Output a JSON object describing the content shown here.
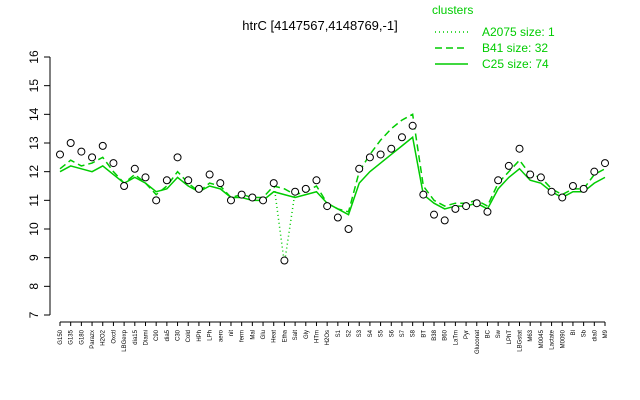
{
  "chart_data": {
    "type": "line",
    "title": "htrC [4147567,4148769,-1]",
    "legend_title": "clusters",
    "legend": "top-right",
    "categories": [
      "G150",
      "G135",
      "G180",
      "Parazx",
      "H2O2",
      "Oxctl",
      "LBGexp",
      "dia15",
      "Diami",
      "C90",
      "dia5",
      "C30",
      "Cold",
      "HPh",
      "LPh",
      "aero",
      "nit",
      "ferm",
      "Mal",
      "Glu",
      "Heat",
      "Etha",
      "Salt",
      "Gly",
      "HTm",
      "H2Os",
      "S1",
      "S2",
      "S3",
      "S4",
      "S5",
      "S6",
      "S7",
      "S8",
      "BT",
      "B38",
      "B60",
      "LaTm",
      "Pyr",
      "Gluconat",
      "BC",
      "Sw",
      "LPhT",
      "LBGstat",
      "M63",
      "M0045",
      "Lactate",
      "M0090",
      "Bl",
      "Sb",
      "dia0",
      "M9"
    ],
    "points": [
      12.6,
      13.0,
      12.7,
      12.5,
      12.9,
      12.3,
      11.5,
      12.1,
      11.8,
      11.0,
      11.7,
      12.5,
      11.7,
      11.4,
      11.9,
      11.6,
      11.0,
      11.2,
      11.1,
      11.0,
      11.6,
      8.9,
      11.3,
      11.4,
      11.7,
      10.8,
      10.4,
      10.0,
      12.1,
      12.5,
      12.6,
      12.8,
      13.2,
      13.6,
      11.2,
      10.5,
      10.3,
      10.7,
      10.8,
      10.9,
      10.6,
      11.7,
      12.2,
      12.8,
      11.9,
      11.8,
      11.3,
      11.1,
      11.5,
      11.4,
      12.0,
      12.3
    ],
    "series": [
      {
        "name": "A2075 size: 1",
        "color": "#00cc00",
        "dash": "1,3",
        "values": [
          null,
          null,
          null,
          null,
          null,
          null,
          null,
          null,
          null,
          null,
          null,
          null,
          null,
          null,
          null,
          null,
          null,
          null,
          null,
          null,
          11.6,
          8.8,
          11.3,
          null,
          null,
          null,
          null,
          null,
          null,
          null,
          null,
          null,
          null,
          null,
          null,
          null,
          null,
          null,
          null,
          null,
          null,
          null,
          null,
          null,
          null,
          null,
          null,
          null,
          null,
          null,
          null,
          null
        ]
      },
      {
        "name": "B41 size: 32",
        "color": "#00cc00",
        "dash": "7,4",
        "values": [
          12.1,
          12.4,
          12.2,
          12.3,
          12.5,
          12.0,
          11.6,
          11.9,
          11.6,
          11.2,
          11.5,
          12.0,
          11.6,
          11.3,
          11.6,
          11.5,
          11.1,
          11.2,
          11.1,
          11.1,
          11.5,
          11.4,
          11.2,
          11.3,
          11.5,
          10.9,
          10.7,
          10.6,
          12.0,
          12.6,
          13.1,
          13.5,
          13.8,
          14.0,
          11.5,
          11.0,
          10.8,
          10.9,
          10.9,
          11.0,
          10.8,
          11.6,
          12.0,
          12.4,
          11.9,
          11.8,
          11.4,
          11.2,
          11.4,
          11.4,
          11.9,
          12.1
        ]
      },
      {
        "name": "C25 size: 74",
        "color": "#00cc00",
        "dash": "",
        "values": [
          12.0,
          12.2,
          12.1,
          12.0,
          12.2,
          11.9,
          11.6,
          11.8,
          11.6,
          11.3,
          11.4,
          11.8,
          11.5,
          11.3,
          11.5,
          11.4,
          11.1,
          11.1,
          11.0,
          11.0,
          11.3,
          11.2,
          11.1,
          11.2,
          11.3,
          10.9,
          10.7,
          10.5,
          11.6,
          12.0,
          12.3,
          12.6,
          12.9,
          13.2,
          11.2,
          10.9,
          10.7,
          10.8,
          10.8,
          10.9,
          10.7,
          11.4,
          11.8,
          12.1,
          11.7,
          11.6,
          11.3,
          11.1,
          11.3,
          11.3,
          11.6,
          11.8
        ]
      }
    ],
    "ylim": [
      7,
      16
    ],
    "yticks": [
      7,
      8,
      9,
      10,
      11,
      12,
      13,
      14,
      15,
      16
    ]
  }
}
